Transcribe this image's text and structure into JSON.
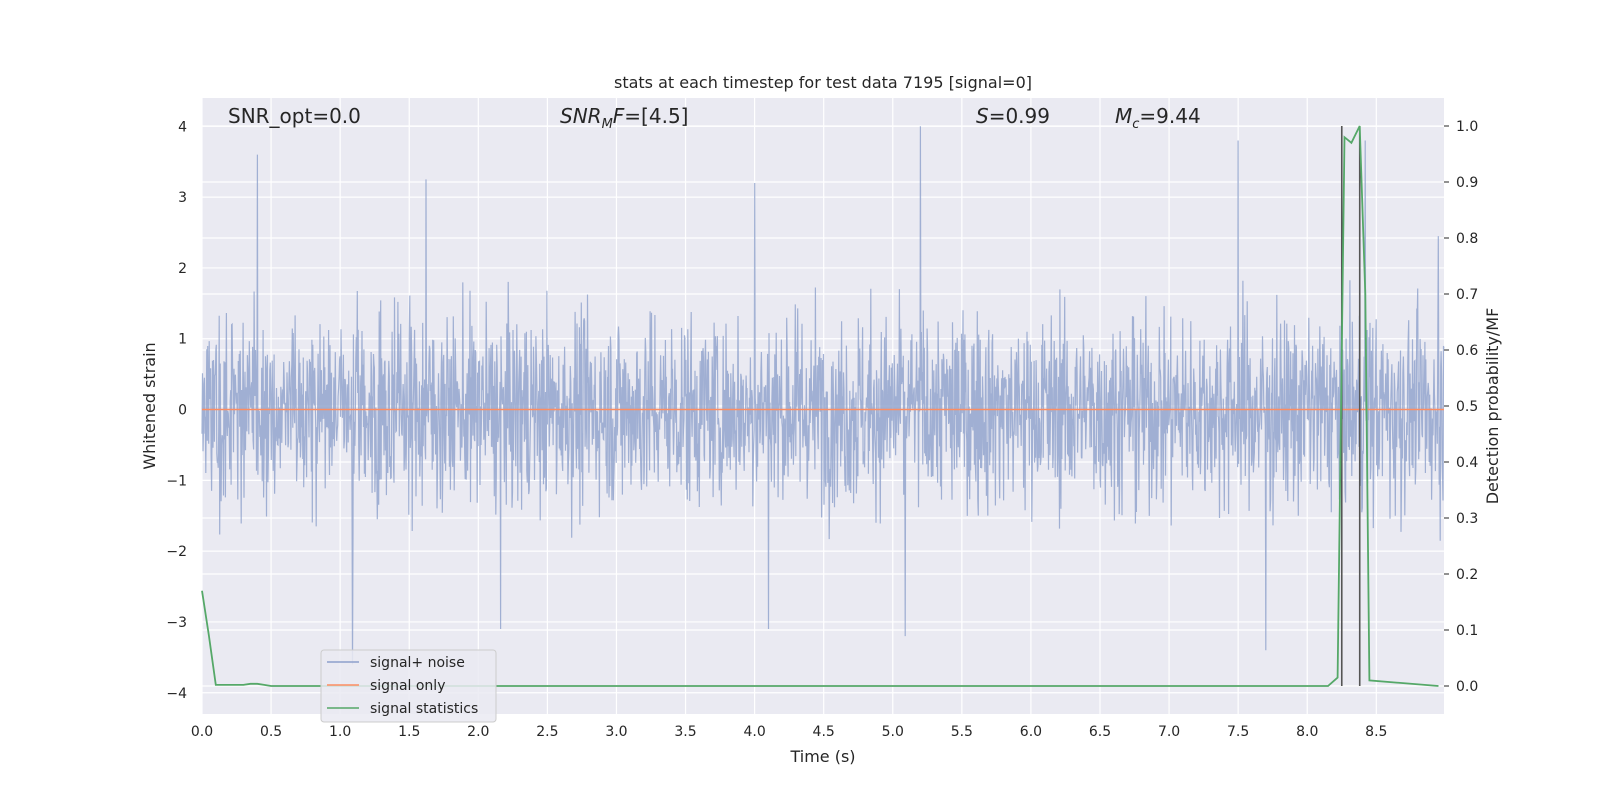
{
  "chart_data": {
    "type": "line",
    "title": "stats at each timestep for test data 7195 [signal=0]",
    "xlabel": "Time (s)",
    "ylabel_left": "Whitened strain",
    "ylabel_right": "Detection probability/MF",
    "xlim": [
      0.0,
      8.99
    ],
    "ylim_left": [
      -4.3,
      4.4
    ],
    "ylim_right": [
      -0.05,
      1.05
    ],
    "x_ticks": [
      "0.0",
      "0.5",
      "1.0",
      "1.5",
      "2.0",
      "2.5",
      "3.0",
      "3.5",
      "4.0",
      "4.5",
      "5.0",
      "5.5",
      "6.0",
      "6.5",
      "7.0",
      "7.5",
      "8.0",
      "8.5"
    ],
    "y_ticks_left": [
      "4",
      "3",
      "2",
      "1",
      "0",
      "−1",
      "−2",
      "−3",
      "−4"
    ],
    "y_ticks_right": [
      "1.0",
      "0.9",
      "0.8",
      "0.7",
      "0.6",
      "0.5",
      "0.4",
      "0.3",
      "0.2",
      "0.1",
      "0.0"
    ],
    "grid": true,
    "legend_placement": "lower-left",
    "annotations": {
      "snr_opt": "SNR_opt=0.0",
      "snr_mf": "=[4.5]",
      "snr_mf_sym": "SNR",
      "snr_mf_sub": "M",
      "snr_mf_f": "F",
      "s_sym": "S",
      "s_val": "=0.99",
      "mc_sym": "M",
      "mc_sub": "c",
      "mc_val": "=9.44"
    },
    "series": [
      {
        "name": "signal+ noise",
        "color": "#8da0cb",
        "axis": "left",
        "description_range": [
          -3.6,
          4.0
        ],
        "peaks": [
          [
            0.4,
            3.6
          ],
          [
            1.62,
            3.25
          ],
          [
            4.0,
            3.2
          ],
          [
            5.2,
            4.0
          ],
          [
            7.5,
            3.8
          ],
          [
            8.42,
            3.8
          ],
          [
            8.95,
            2.45
          ],
          [
            5.09,
            -3.2
          ],
          [
            1.09,
            -3.6
          ],
          [
            7.7,
            -3.4
          ],
          [
            4.1,
            -3.1
          ],
          [
            2.16,
            -3.1
          ]
        ]
      },
      {
        "name": "signal only",
        "color": "#fc8d62",
        "axis": "left",
        "x": [
          0.0,
          8.99
        ],
        "y": [
          0.0,
          0.0
        ]
      },
      {
        "name": "signal statistics",
        "color": "#55a868",
        "axis": "right",
        "x": [
          0.0,
          0.05,
          0.1,
          0.3,
          0.35,
          0.4,
          0.45,
          0.5,
          8.15,
          8.22,
          8.27,
          8.32,
          8.38,
          8.42,
          8.45,
          8.95
        ],
        "y": [
          0.17,
          0.09,
          0.002,
          0.002,
          0.004,
          0.004,
          0.002,
          0.0,
          0.0,
          0.015,
          0.98,
          0.97,
          1.0,
          0.7,
          0.01,
          0.0
        ]
      }
    ],
    "vertical_markers": [
      {
        "x": 8.25,
        "color": "#555555"
      },
      {
        "x": 8.38,
        "color": "#555555"
      }
    ]
  },
  "legend": {
    "items": [
      {
        "label": "signal+ noise",
        "color": "#8da0cb"
      },
      {
        "label": "signal only",
        "color": "#fc8d62"
      },
      {
        "label": "signal statistics",
        "color": "#55a868"
      }
    ]
  }
}
